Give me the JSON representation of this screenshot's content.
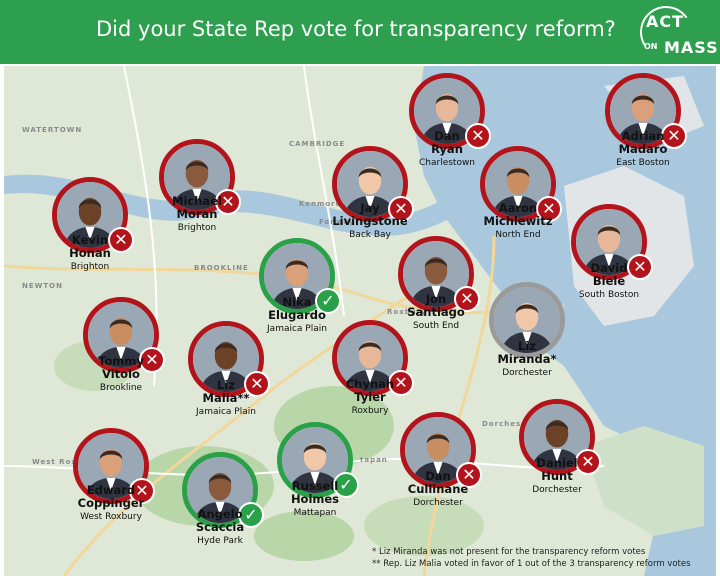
{
  "header": {
    "title": "Did your State Rep vote for transparency reform?",
    "logo": {
      "line1": "ACT",
      "line2": "MASS",
      "line3": "ON"
    }
  },
  "colors": {
    "header_bg": "#2e9e4f",
    "no_vote": "#b3141c",
    "yes_vote": "#2aa048",
    "absent": "#9a9a9a",
    "water": "#a9c8de",
    "land": "#dfe7d6"
  },
  "map_labels": {
    "watertown": "WATERTOWN",
    "cambridge": "CAMBRIDGE",
    "brookline": "BROOKLINE",
    "newton": "NEWTON",
    "fenway": "Fenway",
    "kenmore": "Kenmore",
    "roxbury": "Roxbury",
    "dorchester": "Dorches",
    "west_roxbury": "West Roxbury",
    "mattapan": "tapan",
    "north_end": "North End",
    "bay": "Bay"
  },
  "reps": [
    {
      "id": "dan-ryan",
      "first": "Dan",
      "last": "Ryan",
      "district": "Charlestown",
      "vote": "no",
      "icon": "x-icon"
    },
    {
      "id": "adrian-madaro",
      "first": "Adrian",
      "last": "Madaro",
      "district": "East Boston",
      "vote": "no",
      "icon": "x-icon"
    },
    {
      "id": "michael-moran",
      "first": "Michael",
      "last": "Moran",
      "district": "Brighton",
      "vote": "no",
      "icon": "x-icon"
    },
    {
      "id": "jay-livingstone",
      "first": "Jay",
      "last": "Livingstone",
      "district": "Back Bay",
      "vote": "no",
      "icon": "x-icon"
    },
    {
      "id": "aaron-michlewitz",
      "first": "Aaron",
      "last": "Michlewitz",
      "district": "North End",
      "vote": "no",
      "icon": "x-icon"
    },
    {
      "id": "kevin-honan",
      "first": "Kevin",
      "last": "Honan",
      "district": "Brighton",
      "vote": "no",
      "icon": "x-icon"
    },
    {
      "id": "david-biele",
      "first": "David",
      "last": "Biele",
      "district": "South Boston",
      "vote": "no",
      "icon": "x-icon"
    },
    {
      "id": "nika-elugardo",
      "first": "Nika",
      "last": "Elugardo",
      "district": "Jamaica Plain",
      "vote": "yes",
      "icon": "check-icon"
    },
    {
      "id": "jon-santiago",
      "first": "Jon",
      "last": "Santiago",
      "district": "South End",
      "vote": "no",
      "icon": "x-icon"
    },
    {
      "id": "liz-miranda",
      "first": "Liz",
      "last": "Miranda*",
      "district": "Dorchester",
      "vote": "absent",
      "icon": ""
    },
    {
      "id": "tommy-vitolo",
      "first": "Tommy",
      "last": "Vitolo",
      "district": "Brookline",
      "vote": "no",
      "icon": "x-icon"
    },
    {
      "id": "liz-malia",
      "first": "Liz",
      "last": "Malia**",
      "district": "Jamaica Plain",
      "vote": "no",
      "icon": "x-icon"
    },
    {
      "id": "chynah-tyler",
      "first": "Chynah",
      "last": "Tyler",
      "district": "Roxbury",
      "vote": "no",
      "icon": "x-icon"
    },
    {
      "id": "edward-coppinger",
      "first": "Edward",
      "last": "Coppinger",
      "district": "West Roxbury",
      "vote": "no",
      "icon": "x-icon"
    },
    {
      "id": "angelo-scaccia",
      "first": "Angelo",
      "last": "Scaccia",
      "district": "Hyde Park",
      "vote": "yes",
      "icon": "check-icon"
    },
    {
      "id": "russell-holmes",
      "first": "Russell",
      "last": "Holmes",
      "district": "Mattapan",
      "vote": "yes",
      "icon": "check-icon"
    },
    {
      "id": "dan-cullinane",
      "first": "Dan",
      "last": "Cullinane",
      "district": "Dorchester",
      "vote": "no",
      "icon": "x-icon"
    },
    {
      "id": "daniel-hunt",
      "first": "Daniel",
      "last": "Hunt",
      "district": "Dorchester",
      "vote": "no",
      "icon": "x-icon"
    }
  ],
  "footnotes": [
    "* Liz Miranda was not present for the transparency reform votes",
    "** Rep. Liz Malia voted in favor of 1 out of the 3 transparency reform votes"
  ]
}
